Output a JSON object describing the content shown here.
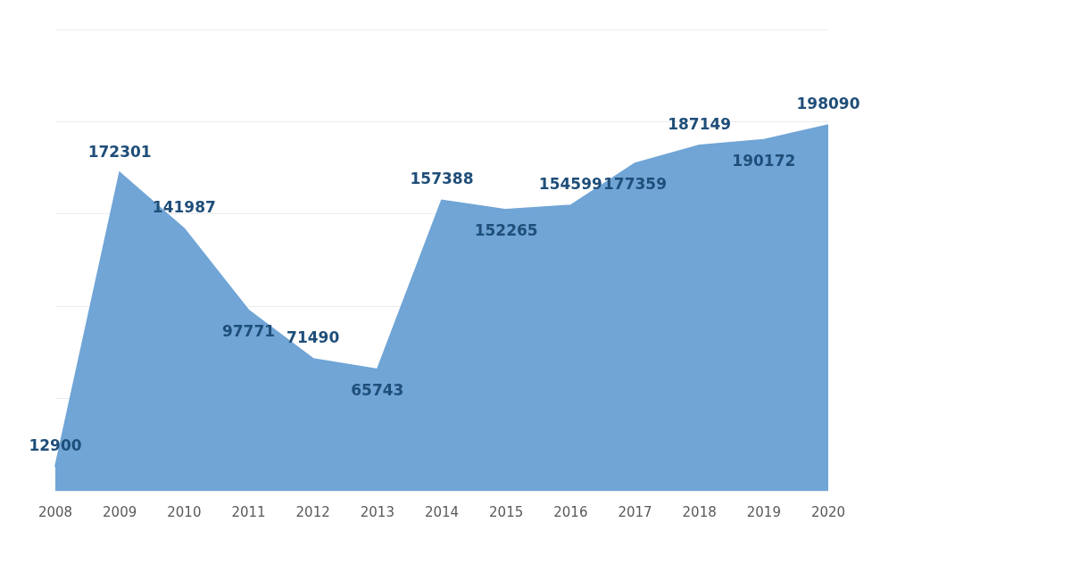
{
  "chart_data": {
    "type": "area",
    "categories": [
      "2008",
      "2009",
      "2010",
      "2011",
      "2012",
      "2013",
      "2014",
      "2015",
      "2016",
      "2017",
      "2018",
      "2019",
      "2020"
    ],
    "values": [
      12900,
      172301,
      141987,
      97771,
      71490,
      65743,
      157388,
      152265,
      154599,
      177359,
      187149,
      190172,
      198090
    ],
    "color": "#70a5d6",
    "ylim": [
      0,
      250000
    ],
    "yticks": [
      0,
      50000,
      100000,
      150000,
      200000,
      250000
    ],
    "grid": true,
    "data_labels": true,
    "tick_labels": "x"
  }
}
